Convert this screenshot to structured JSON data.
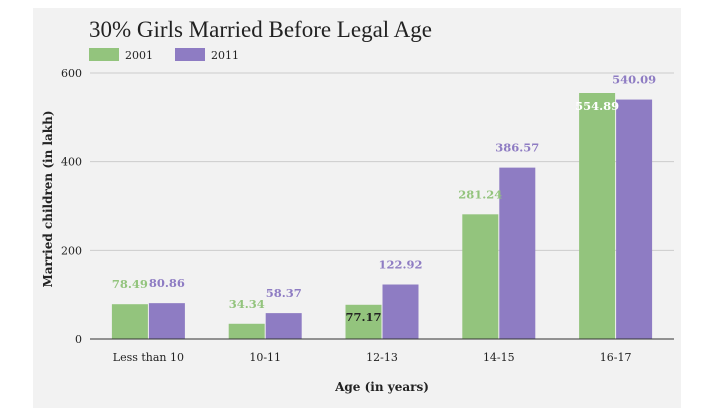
{
  "chart_data": {
    "type": "bar",
    "title": "30% Girls Married Before Legal Age",
    "xlabel": "Age (in years)",
    "ylabel": "Married children (in lakh)",
    "categories": [
      "Less than 10",
      "10-11",
      "12-13",
      "14-15",
      "16-17"
    ],
    "series": [
      {
        "name": "2001",
        "color": "#93c47d",
        "values": [
          78.49,
          34.34,
          77.17,
          281.24,
          554.89
        ],
        "labels": [
          "78.49",
          "34.34",
          "77.17",
          "281.24",
          "554.89"
        ]
      },
      {
        "name": "2011",
        "color": "#8e7cc3",
        "values": [
          80.86,
          58.37,
          122.92,
          386.57,
          540.09
        ],
        "labels": [
          "80.86",
          "58.37",
          "122.92",
          "386.57",
          "540.09"
        ]
      }
    ],
    "ylim": [
      0,
      600
    ],
    "yticks": [
      0,
      200,
      400,
      600
    ],
    "grid": true,
    "legend_position": "top-left"
  }
}
